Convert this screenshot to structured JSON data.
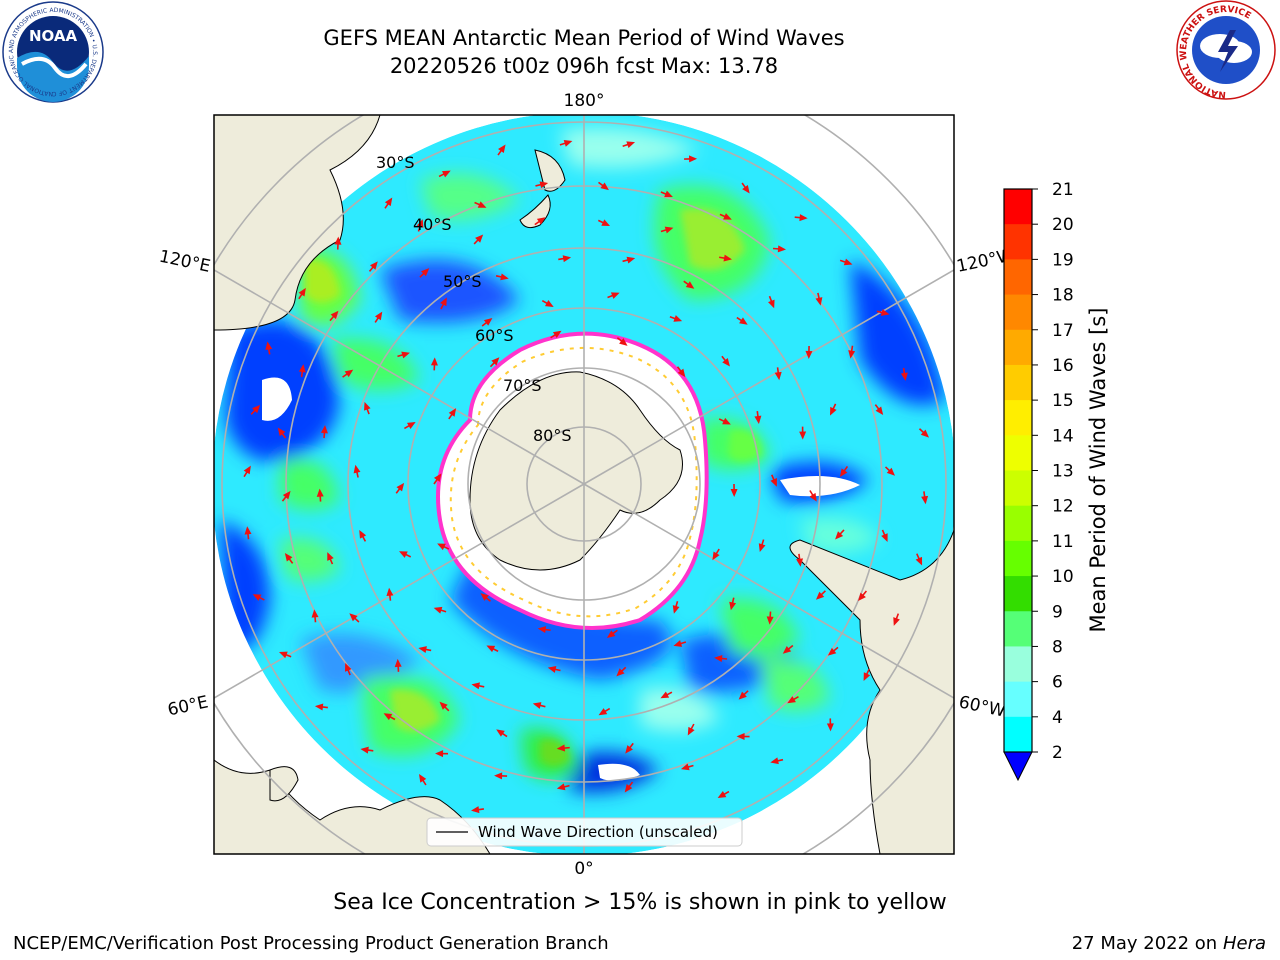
{
  "title": {
    "line1": "GEFS MEAN Antarctic Mean Period of Wind Waves",
    "line2": "20220526 t00z 096h fcst   Max: 13.78"
  },
  "map": {
    "longitude_labels": {
      "top": "180°",
      "bottom": "0°",
      "upper_left": "120°E",
      "upper_right": "120°W",
      "lower_left": "60°E",
      "lower_right": "60°W"
    },
    "latitude_labels": [
      "30°S",
      "40°S",
      "50°S",
      "60°S",
      "70°S",
      "80°S"
    ],
    "legend": "Wind Wave Direction (unscaled)",
    "colors": {
      "land": "#eeecdb",
      "ice": "#ffffff",
      "ice_edge": [
        "#ff33cc",
        "#ff99cc",
        "#ffcc33"
      ],
      "arrow": "#ee1111",
      "grid": "#b0b0b0"
    }
  },
  "colorbar": {
    "label": "Mean Period of Wind Waves [s]",
    "ticks": [
      "21",
      "20",
      "19",
      "18",
      "17",
      "16",
      "15",
      "14",
      "13",
      "12",
      "11",
      "10",
      "9",
      "8",
      "6",
      "4",
      "2"
    ],
    "colors": [
      "#ff0000",
      "#ff3300",
      "#ff6600",
      "#ff8800",
      "#ffaa00",
      "#ffcc00",
      "#ffee00",
      "#eeff00",
      "#ccff00",
      "#99ff00",
      "#66ff00",
      "#33dd00",
      "#55ff77",
      "#99ffdd",
      "#66ffff",
      "#00ffff",
      "#0077ff",
      "#0000ff"
    ]
  },
  "notes": {
    "ice": "Sea Ice Concentration > 15% is shown in pink to yellow",
    "source": "NCEP/EMC/Verification Post Processing Product Generation Branch",
    "date": "27 May 2022 on",
    "machine": "Hera"
  },
  "logos": {
    "noaa": "NOAA",
    "noaa_ring": "NATIONAL OCEANIC AND ATMOSPHERIC ADMINISTRATION • U.S. DEPARTMENT OF COMMERCE",
    "nws_ring": "NATIONAL WEATHER SERVICE"
  }
}
